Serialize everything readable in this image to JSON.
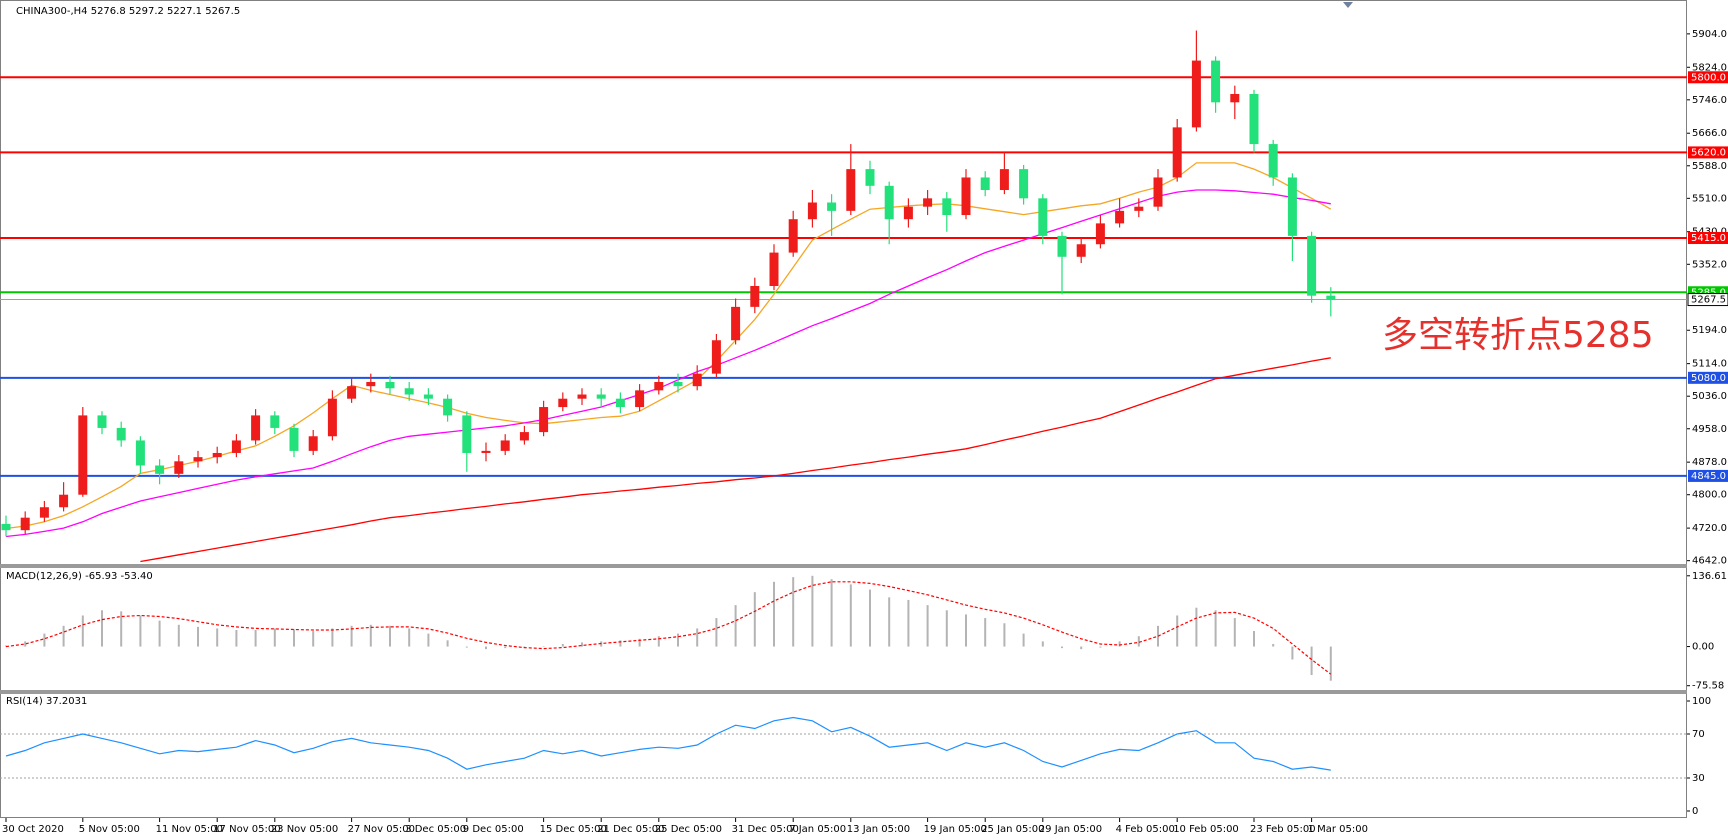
{
  "chart_data": [
    {
      "type": "candlestick",
      "title": "CHINA300-,H4  5276.8 5297.2 5227.1 5267.5",
      "categories": [
        "30 Oct 2020",
        null,
        null,
        null,
        "5 Nov 05:00",
        null,
        null,
        null,
        "11 Nov 05:00",
        null,
        null,
        "17 Nov 05:00",
        null,
        null,
        "23 Nov 05:00",
        null,
        null,
        null,
        "27 Nov 05:00",
        null,
        null,
        "3 Dec 05:00",
        null,
        null,
        "9 Dec 05:00",
        null,
        null,
        null,
        "15 Dec 05:00",
        null,
        null,
        "21 Dec 05:00",
        null,
        null,
        "25 Dec 05:00",
        null,
        null,
        null,
        "31 Dec 05:00",
        null,
        null,
        "7 Jan 05:00",
        null,
        null,
        "13 Jan 05:00",
        null,
        null,
        null,
        "19 Jan 05:00",
        null,
        null,
        "25 Jan 05:00",
        null,
        null,
        "29 Jan 05:00",
        null,
        null,
        null,
        "4 Feb 05:00",
        null,
        null,
        "10 Feb 05:00",
        null,
        null,
        null,
        "23 Feb 05:00",
        null,
        null,
        "1 Mar 05:00",
        null
      ],
      "open": [
        4730,
        4715,
        4745,
        4770,
        4800,
        4990,
        4960,
        4930,
        4870,
        4850,
        4880,
        4890,
        4900,
        4930,
        4990,
        4960,
        4905,
        4940,
        5030,
        5060,
        5070,
        5055,
        5040,
        5030,
        4990,
        4900,
        4905,
        4930,
        4950,
        5010,
        5030,
        5040,
        5030,
        5010,
        5050,
        5070,
        5060,
        5090,
        5170,
        5250,
        5300,
        5380,
        5460,
        5500,
        5480,
        5580,
        5540,
        5460,
        5490,
        5510,
        5470,
        5560,
        5530,
        5580,
        5510,
        5420,
        5370,
        5400,
        5450,
        5480,
        5490,
        5560,
        5680,
        5840,
        5740,
        5760,
        5640,
        5560,
        5420,
        5276.8
      ],
      "high": [
        4750,
        4760,
        4785,
        4830,
        5010,
        5000,
        4975,
        4940,
        4885,
        4895,
        4905,
        4915,
        4945,
        5005,
        5000,
        4970,
        4955,
        5050,
        5080,
        5090,
        5085,
        5070,
        5055,
        5040,
        5000,
        4925,
        4945,
        4965,
        5025,
        5045,
        5055,
        5055,
        5045,
        5065,
        5085,
        5090,
        5110,
        5185,
        5270,
        5320,
        5400,
        5480,
        5530,
        5520,
        5640,
        5600,
        5550,
        5510,
        5530,
        5525,
        5580,
        5575,
        5620,
        5590,
        5520,
        5430,
        5415,
        5470,
        5510,
        5510,
        5580,
        5700,
        5912,
        5850,
        5780,
        5770,
        5650,
        5570,
        5430,
        5297.2
      ],
      "low": [
        4700,
        4705,
        4735,
        4760,
        4795,
        4945,
        4915,
        4850,
        4825,
        4840,
        4865,
        4875,
        4890,
        4920,
        4945,
        4890,
        4895,
        4930,
        5020,
        5045,
        5040,
        5025,
        5015,
        4975,
        4855,
        4880,
        4895,
        4920,
        4940,
        5000,
        5015,
        5010,
        4995,
        5000,
        5040,
        5045,
        5050,
        5080,
        5160,
        5235,
        5290,
        5370,
        5440,
        5420,
        5470,
        5520,
        5400,
        5440,
        5470,
        5430,
        5460,
        5515,
        5520,
        5495,
        5400,
        5280,
        5355,
        5390,
        5440,
        5465,
        5480,
        5550,
        5670,
        5715,
        5700,
        5620,
        5540,
        5360,
        5260,
        5227.1
      ],
      "close": [
        4715,
        4745,
        4770,
        4800,
        4990,
        4960,
        4930,
        4870,
        4850,
        4880,
        4890,
        4900,
        4930,
        4990,
        4960,
        4905,
        4940,
        5030,
        5060,
        5070,
        5055,
        5040,
        5030,
        4990,
        4900,
        4905,
        4930,
        4950,
        5010,
        5030,
        5040,
        5030,
        5010,
        5050,
        5070,
        5060,
        5090,
        5170,
        5250,
        5300,
        5380,
        5460,
        5500,
        5480,
        5580,
        5540,
        5460,
        5490,
        5510,
        5470,
        5560,
        5530,
        5580,
        5510,
        5420,
        5370,
        5400,
        5450,
        5480,
        5490,
        5560,
        5680,
        5840,
        5740,
        5760,
        5640,
        5560,
        5420,
        5276.8,
        5267.5
      ],
      "up_color": "#ef1c1c",
      "down_color": "#22e07a",
      "series": [
        {
          "color": "#f5a623",
          "values": [
            4719,
            4725,
            4735,
            4750,
            4771,
            4795,
            4820,
            4851,
            4860,
            4870,
            4880,
            4892,
            4905,
            4917,
            4940,
            4965,
            4996,
            5030,
            5062,
            5050,
            5040,
            5030,
            5020,
            5009,
            4995,
            4985,
            4978,
            4972,
            4970,
            4975,
            4980,
            4985,
            4988,
            5000,
            5025,
            5050,
            5075,
            5120,
            5170,
            5220,
            5280,
            5345,
            5410,
            5435,
            5460,
            5484,
            5488,
            5492,
            5495,
            5497,
            5492,
            5485,
            5478,
            5471,
            5478,
            5485,
            5492,
            5497,
            5510,
            5525,
            5537,
            5560,
            5595,
            5595,
            5595,
            5580,
            5560,
            5535,
            5510,
            5484
          ]
        },
        {
          "color": "#ff00ff",
          "values": [
            4700,
            4705,
            4712,
            4720,
            4735,
            4755,
            4770,
            4785,
            4795,
            4805,
            4815,
            4825,
            4835,
            4843,
            4850,
            4857,
            4864,
            4880,
            4898,
            4915,
            4930,
            4940,
            4945,
            4950,
            4955,
            4960,
            4965,
            4972,
            4980,
            4990,
            5000,
            5010,
            5025,
            5040,
            5055,
            5075,
            5095,
            5110,
            5128,
            5146,
            5165,
            5185,
            5205,
            5222,
            5240,
            5258,
            5280,
            5300,
            5320,
            5339,
            5360,
            5380,
            5395,
            5410,
            5425,
            5440,
            5455,
            5470,
            5485,
            5500,
            5515,
            5525,
            5530,
            5530,
            5528,
            5524,
            5520,
            5512,
            5505,
            5497
          ]
        },
        {
          "color": "#ff0000",
          "values": [
            null,
            null,
            null,
            null,
            null,
            null,
            null,
            4640,
            4648,
            4656,
            4664,
            4672,
            4680,
            4688,
            4696,
            4704,
            4712,
            4720,
            4728,
            4737,
            4745,
            4750,
            4756,
            4761,
            4767,
            4772,
            4778,
            4783,
            4789,
            4794,
            4800,
            4804,
            4809,
            4813,
            4818,
            4822,
            4827,
            4831,
            4836,
            4840,
            4845,
            4851,
            4858,
            4864,
            4871,
            4877,
            4884,
            4890,
            4897,
            4903,
            4910,
            4920,
            4931,
            4941,
            4952,
            4962,
            4973,
            4983,
            4999,
            5015,
            5031,
            5046,
            5062,
            5078,
            5086,
            5095,
            5103,
            5111,
            5120,
            5128
          ]
        }
      ],
      "levels": [
        {
          "value": 5800,
          "label": "5800.0",
          "color": "#ff0000"
        },
        {
          "value": 5620,
          "label": "5620.0",
          "color": "#ff0000"
        },
        {
          "value": 5415,
          "label": "5415.0",
          "color": "#ff0000"
        },
        {
          "value": 5285,
          "label": "5285.0",
          "color": "#00c800"
        },
        {
          "value": 5080,
          "label": "5080.0",
          "color": "#1e50e6"
        },
        {
          "value": 4845,
          "label": "4845.0",
          "color": "#1e50e6"
        },
        {
          "value": 5267.5,
          "label": "5267.5",
          "color": "#a0a0a0",
          "label_color": "#000000"
        }
      ],
      "annotation": "多空转折点5285",
      "ylim": [
        4634,
        5954
      ],
      "yticks": [
        {
          "value": 4642,
          "label": "4642.0"
        },
        {
          "value": 4720,
          "label": "4720.0"
        },
        {
          "value": 4800,
          "label": "4800.0"
        },
        {
          "value": 4878,
          "label": "4878.0"
        },
        {
          "value": 4958,
          "label": "4958.0"
        },
        {
          "value": 5036,
          "label": "5036.0"
        },
        {
          "value": 5114,
          "label": "5114.0"
        },
        {
          "value": 5194,
          "label": "5194.0"
        },
        {
          "value": 5352,
          "label": "5352.0"
        },
        {
          "value": 5430,
          "label": "5430.0"
        },
        {
          "value": 5510,
          "label": "5510.0"
        },
        {
          "value": 5588,
          "label": "5588.0"
        },
        {
          "value": 5666,
          "label": "5666.0"
        },
        {
          "value": 5746,
          "label": "5746.0"
        },
        {
          "value": 5824,
          "label": "5824.0"
        },
        {
          "value": 5904,
          "label": "5904.0"
        }
      ]
    },
    {
      "type": "macd",
      "title": "MACD(12,26,9) -65.93 -53.40",
      "histogram": [
        2,
        10,
        25,
        40,
        60,
        70,
        68,
        60,
        50,
        42,
        38,
        35,
        32,
        32,
        35,
        33,
        30,
        35,
        40,
        42,
        40,
        35,
        25,
        12,
        -2,
        -5,
        -3,
        -2,
        0,
        5,
        8,
        10,
        12,
        15,
        20,
        25,
        35,
        55,
        80,
        105,
        125,
        134,
        136.61,
        130,
        120,
        110,
        95,
        90,
        80,
        70,
        62,
        55,
        45,
        25,
        10,
        -3,
        -5,
        -2,
        10,
        20,
        40,
        60,
        75,
        70,
        55,
        30,
        5,
        -25,
        -55,
        -65.93
      ],
      "signal": [
        0,
        5,
        15,
        28,
        42,
        52,
        58,
        60,
        58,
        54,
        48,
        42,
        38,
        35,
        34,
        33,
        32,
        32,
        34,
        37,
        38,
        38,
        34,
        26,
        16,
        8,
        2,
        -2,
        -4,
        -2,
        2,
        6,
        9,
        12,
        15,
        19,
        25,
        35,
        50,
        68,
        88,
        105,
        118,
        125,
        125,
        122,
        116,
        108,
        100,
        90,
        80,
        72,
        65,
        55,
        42,
        28,
        15,
        5,
        3,
        8,
        20,
        38,
        55,
        65,
        66,
        55,
        35,
        5,
        -25,
        -53.4
      ],
      "histogram_color": "#b4b4b4",
      "signal_color": "#ff0000",
      "ylim": [
        -80,
        142
      ],
      "yticks": [
        {
          "value": -75.58,
          "label": "-75.58"
        },
        {
          "value": 0,
          "label": "0.00"
        },
        136.61
      ]
    },
    {
      "type": "line",
      "title": "RSI(14) 37.2031",
      "values": [
        50,
        55,
        62,
        66,
        70,
        66,
        62,
        57,
        52,
        55,
        54,
        56,
        58,
        64,
        60,
        53,
        57,
        63,
        66,
        62,
        60,
        58,
        55,
        48,
        38,
        42,
        45,
        48,
        55,
        52,
        55,
        50,
        53,
        56,
        58,
        57,
        60,
        70,
        78,
        75,
        82,
        85,
        82,
        72,
        76,
        68,
        58,
        60,
        62,
        55,
        62,
        58,
        62,
        55,
        45,
        40,
        46,
        52,
        56,
        55,
        62,
        70,
        73,
        62,
        62,
        48,
        45,
        38,
        40,
        37.2031
      ],
      "color": "#1e90ff",
      "ylim": [
        0,
        100
      ],
      "yticks": [
        0,
        30,
        70,
        100
      ],
      "grid_dotted": true
    }
  ]
}
